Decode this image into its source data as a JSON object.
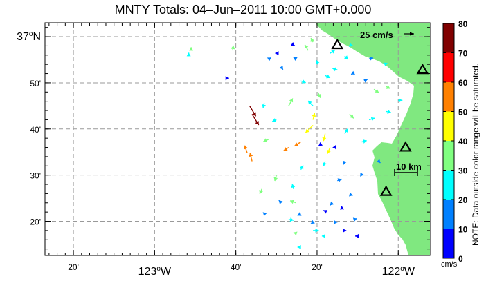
{
  "title": "MNTY Totals: 04–Jun–2011 10:00 GMT+0.000",
  "lat_labels": [
    {
      "value": 37.0,
      "label": "37°N",
      "major": true
    },
    {
      "value": 36.8333,
      "label": "50'",
      "major": false
    },
    {
      "value": 36.6667,
      "label": "40'",
      "major": false
    },
    {
      "value": 36.5,
      "label": "30'",
      "major": false
    },
    {
      "value": 36.3333,
      "label": "20'",
      "major": false
    }
  ],
  "lon_labels": [
    {
      "value": -123.3333,
      "label": "20'",
      "major": false
    },
    {
      "value": -123.0,
      "label": "123°W",
      "major": true
    },
    {
      "value": -122.6667,
      "label": "40'",
      "major": false
    },
    {
      "value": -122.3333,
      "label": "20'",
      "major": false
    },
    {
      "value": -122.0,
      "label": "122°W",
      "major": true
    }
  ],
  "reference_vector": {
    "label": "25 cm/s",
    "speed_cm_s": 25
  },
  "scale_bar": {
    "label": "10 km",
    "km": 10
  },
  "colorbar": {
    "ticks": [
      "80",
      "70",
      "60",
      "50",
      "40",
      "30",
      "20",
      "10",
      "0"
    ],
    "colors": [
      "#800000",
      "#ff0000",
      "#ff8000",
      "#ffff00",
      "#80ff80",
      "#00ffff",
      "#0080ff",
      "#0000ff"
    ],
    "unit": "cm/s",
    "note": "NOTE: Data outside color range will be saturated."
  },
  "colors": {
    "land": "#80e880",
    "grid": "#999999"
  },
  "stations": [
    {
      "lon": -122.25,
      "lat": 36.97
    },
    {
      "lon": -121.9,
      "lat": 36.88
    },
    {
      "lon": -121.97,
      "lat": 36.6
    },
    {
      "lon": -122.05,
      "lat": 36.44
    }
  ],
  "chart_data": {
    "type": "map",
    "map_extent": {
      "lon": [
        -123.45,
        -121.87
      ],
      "lat": [
        36.21,
        37.05
      ]
    },
    "vectors": [
      {
        "lon": -122.61,
        "lat": 36.75,
        "u": 15,
        "v": -25,
        "speed": 70
      },
      {
        "lon": -122.6,
        "lat": 36.72,
        "u": 16,
        "v": -26,
        "speed": 71
      },
      {
        "lon": -122.62,
        "lat": 36.58,
        "u": -6,
        "v": 18,
        "speed": 55
      },
      {
        "lon": -122.6,
        "lat": 36.55,
        "u": -5,
        "v": 20,
        "speed": 52
      },
      {
        "lon": -122.35,
        "lat": 36.68,
        "u": -18,
        "v": -18,
        "speed": 48
      },
      {
        "lon": -122.4,
        "lat": 36.62,
        "u": -15,
        "v": -10,
        "speed": 52
      },
      {
        "lon": -122.45,
        "lat": 36.6,
        "u": -12,
        "v": -8,
        "speed": 50
      },
      {
        "lon": -122.3,
        "lat": 36.65,
        "u": -4,
        "v": -18,
        "speed": 45
      },
      {
        "lon": -122.28,
        "lat": 36.6,
        "u": -6,
        "v": -15,
        "speed": 42
      },
      {
        "lon": -122.35,
        "lat": 36.7,
        "u": 4,
        "v": 16,
        "speed": 41
      },
      {
        "lon": -122.53,
        "lat": 36.63,
        "u": -14,
        "v": -6,
        "speed": 38
      },
      {
        "lon": -122.45,
        "lat": 36.75,
        "u": 10,
        "v": 18,
        "speed": 36
      },
      {
        "lon": -122.5,
        "lat": 36.5,
        "u": -4,
        "v": -14,
        "speed": 34
      },
      {
        "lon": -122.56,
        "lat": 36.45,
        "u": -5,
        "v": -12,
        "speed": 34
      },
      {
        "lon": -122.42,
        "lat": 36.4,
        "u": -14,
        "v": 5,
        "speed": 33
      },
      {
        "lon": -122.2,
        "lat": 36.72,
        "u": 10,
        "v": -10,
        "speed": 35
      },
      {
        "lon": -122.1,
        "lat": 36.81,
        "u": 12,
        "v": -8,
        "speed": 37
      },
      {
        "lon": -122.05,
        "lat": 36.82,
        "u": 10,
        "v": -5,
        "speed": 34
      },
      {
        "lon": -122.33,
        "lat": 36.8,
        "u": 6,
        "v": -14,
        "speed": 32
      },
      {
        "lon": -122.68,
        "lat": 36.95,
        "u": 2,
        "v": 12,
        "speed": 31
      },
      {
        "lon": -122.37,
        "lat": 36.95,
        "u": -8,
        "v": 14,
        "speed": 32
      },
      {
        "lon": -122.35,
        "lat": 36.98,
        "u": -5,
        "v": 10,
        "speed": 30
      },
      {
        "lon": -122.3,
        "lat": 36.86,
        "u": 12,
        "v": -6,
        "speed": 28
      },
      {
        "lon": -122.25,
        "lat": 36.88,
        "u": -12,
        "v": 4,
        "speed": 26
      },
      {
        "lon": -122.4,
        "lat": 36.84,
        "u": 12,
        "v": -4,
        "speed": 27
      },
      {
        "lon": -122.35,
        "lat": 36.75,
        "u": -12,
        "v": 12,
        "speed": 27
      },
      {
        "lon": -122.22,
        "lat": 36.65,
        "u": 8,
        "v": 12,
        "speed": 27
      },
      {
        "lon": -122.15,
        "lat": 36.62,
        "u": 12,
        "v": 3,
        "speed": 25
      },
      {
        "lon": -122.12,
        "lat": 36.7,
        "u": 14,
        "v": 4,
        "speed": 26
      },
      {
        "lon": -122.3,
        "lat": 36.55,
        "u": -4,
        "v": -12,
        "speed": 24
      },
      {
        "lon": -122.4,
        "lat": 36.52,
        "u": 6,
        "v": 10,
        "speed": 25
      },
      {
        "lon": -122.43,
        "lat": 36.45,
        "u": -3,
        "v": 12,
        "speed": 26
      },
      {
        "lon": -122.45,
        "lat": 36.34,
        "u": 12,
        "v": -2,
        "speed": 26
      },
      {
        "lon": -122.35,
        "lat": 36.3,
        "u": 14,
        "v": 0,
        "speed": 27
      },
      {
        "lon": -122.3,
        "lat": 36.28,
        "u": -8,
        "v": 0,
        "speed": 22
      },
      {
        "lon": -122.05,
        "lat": 36.73,
        "u": 12,
        "v": -3,
        "speed": 24
      },
      {
        "lon": -122.0,
        "lat": 36.77,
        "u": 10,
        "v": 0,
        "speed": 22
      },
      {
        "lon": -122.55,
        "lat": 36.76,
        "u": -3,
        "v": -12,
        "speed": 28
      },
      {
        "lon": -122.5,
        "lat": 36.7,
        "u": -10,
        "v": -4,
        "speed": 29
      },
      {
        "lon": -122.28,
        "lat": 36.94,
        "u": 12,
        "v": 8,
        "speed": 22
      },
      {
        "lon": -122.22,
        "lat": 36.93,
        "u": 8,
        "v": -8,
        "speed": 20
      },
      {
        "lon": -122.33,
        "lat": 36.9,
        "u": -4,
        "v": 10,
        "speed": 21
      },
      {
        "lon": -122.18,
        "lat": 36.87,
        "u": -8,
        "v": -4,
        "speed": 18
      },
      {
        "lon": -122.14,
        "lat": 36.84,
        "u": 8,
        "v": 4,
        "speed": 18
      },
      {
        "lon": -122.25,
        "lat": 36.48,
        "u": 10,
        "v": 4,
        "speed": 17
      },
      {
        "lon": -122.27,
        "lat": 36.4,
        "u": -6,
        "v": -6,
        "speed": 15
      },
      {
        "lon": -122.2,
        "lat": 36.43,
        "u": 8,
        "v": -2,
        "speed": 14
      },
      {
        "lon": -122.4,
        "lat": 36.36,
        "u": -8,
        "v": -4,
        "speed": 16
      },
      {
        "lon": -122.48,
        "lat": 36.4,
        "u": -6,
        "v": 6,
        "speed": 18
      },
      {
        "lon": -122.22,
        "lat": 36.55,
        "u": -3,
        "v": -8,
        "speed": 15
      },
      {
        "lon": -122.42,
        "lat": 36.92,
        "u": -6,
        "v": 4,
        "speed": 14
      },
      {
        "lon": -122.48,
        "lat": 36.89,
        "u": 4,
        "v": -6,
        "speed": 13
      },
      {
        "lon": -122.53,
        "lat": 36.92,
        "u": 5,
        "v": 3,
        "speed": 12
      },
      {
        "lon": -122.35,
        "lat": 36.33,
        "u": -5,
        "v": -4,
        "speed": 13
      },
      {
        "lon": -122.26,
        "lat": 36.33,
        "u": 6,
        "v": 0,
        "speed": 12
      },
      {
        "lon": -122.18,
        "lat": 36.34,
        "u": 6,
        "v": 2,
        "speed": 14
      },
      {
        "lon": -122.55,
        "lat": 36.36,
        "u": 6,
        "v": 2,
        "speed": 12
      },
      {
        "lon": -122.32,
        "lat": 36.61,
        "u": -4,
        "v": -3,
        "speed": 8
      },
      {
        "lon": -122.26,
        "lat": 36.6,
        "u": 3,
        "v": -4,
        "speed": 6
      },
      {
        "lon": -122.3,
        "lat": 36.37,
        "u": -4,
        "v": 2,
        "speed": 7
      },
      {
        "lon": -122.23,
        "lat": 36.38,
        "u": 4,
        "v": -2,
        "speed": 5
      },
      {
        "lon": -122.22,
        "lat": 36.3,
        "u": 4,
        "v": 0,
        "speed": 7
      },
      {
        "lon": -122.17,
        "lat": 36.28,
        "u": -4,
        "v": 0,
        "speed": 6
      },
      {
        "lon": -122.5,
        "lat": 36.94,
        "u": -3,
        "v": 0,
        "speed": 5
      },
      {
        "lon": -122.43,
        "lat": 36.97,
        "u": 3,
        "v": -2,
        "speed": 8
      },
      {
        "lon": -122.7,
        "lat": 36.85,
        "u": 3,
        "v": 0,
        "speed": 5
      },
      {
        "lon": -122.85,
        "lat": 36.95,
        "u": 0,
        "v": 8,
        "speed": 30
      },
      {
        "lon": -122.86,
        "lat": 36.93,
        "u": 0,
        "v": 8,
        "speed": 28
      },
      {
        "lon": -122.4,
        "lat": 36.24,
        "u": -8,
        "v": 0,
        "speed": 22
      },
      {
        "lon": -122.42,
        "lat": 36.29,
        "u": -6,
        "v": 2,
        "speed": 32
      },
      {
        "lon": -122.12,
        "lat": 36.92,
        "u": 10,
        "v": 2,
        "speed": 16
      },
      {
        "lon": -122.2,
        "lat": 36.97,
        "u": 8,
        "v": -2,
        "speed": 21
      },
      {
        "lon": -122.05,
        "lat": 36.9,
        "u": -6,
        "v": 4,
        "speed": 20
      },
      {
        "lon": -122.08,
        "lat": 36.55,
        "u": 4,
        "v": -4,
        "speed": 14
      },
      {
        "lon": -122.15,
        "lat": 36.5,
        "u": -3,
        "v": 6,
        "speed": 18
      }
    ]
  }
}
